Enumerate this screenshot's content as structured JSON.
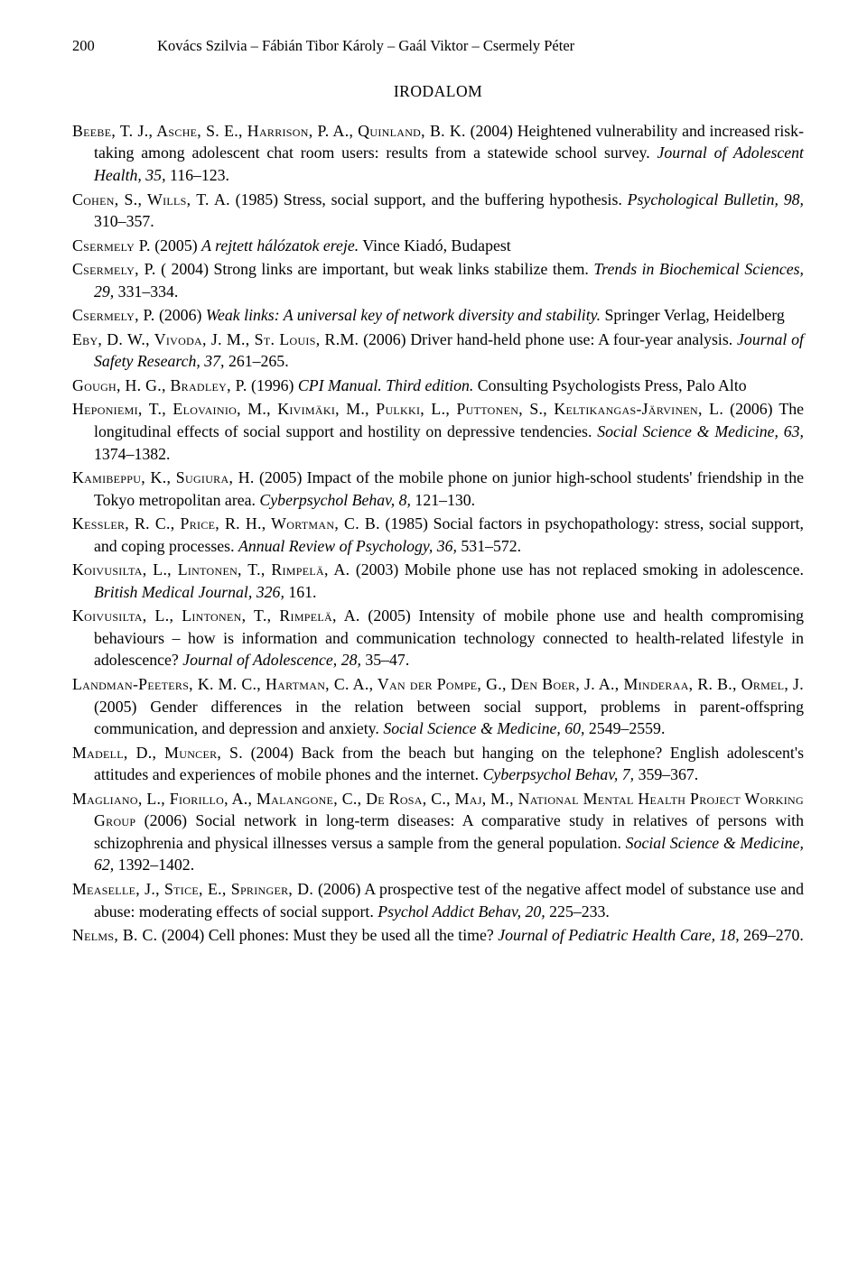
{
  "header": {
    "page_number": "200",
    "running_head": "Kovács Szilvia – Fábián Tibor Károly – Gaál Viktor – Csermely Péter"
  },
  "section_title": "IRODALOM",
  "refs": {
    "r1": {
      "authors": "Beebe, T. J., Asche, S. E., Harrison, P. A., Quinland, B. K.",
      "rest_a": " (2004) Heightened vulnerability and increased risk-taking among adolescent chat room users: results from a statewide school survey. ",
      "journal": "Journal of Adolescent Health, 35,",
      "rest_b": " 116–123."
    },
    "r2": {
      "authors": "Cohen, S., Wills, T. A.",
      "rest_a": " (1985) Stress, social support, and the buffering hypothesis. ",
      "journal": "Psychological Bulletin, 98,",
      "rest_b": " 310–357."
    },
    "r3": {
      "authors": "Csermely P.",
      "rest_a": " (2005) ",
      "title_it": "A rejtett hálózatok ereje.",
      "rest_b": " Vince Kiadó, Budapest"
    },
    "r4": {
      "authors": "Csermely, P.",
      "rest_a": " ( 2004) Strong links are important, but weak links stabilize them. ",
      "journal": "Trends in Biochemical Sciences, 29,",
      "rest_b": " 331–334."
    },
    "r5": {
      "authors": "Csermely, P.",
      "rest_a": " (2006) ",
      "title_it": "Weak links: A universal key of network diversity and stability.",
      "rest_b": " Springer Verlag, Heidelberg"
    },
    "r6": {
      "authors": "Eby, D. W., Vivoda, J. M., St. Louis, R.M.",
      "rest_a": " (2006) Driver hand-held phone use: A four-year analysis. ",
      "journal": "Journal of Safety Research, 37,",
      "rest_b": " 261–265."
    },
    "r7": {
      "authors": "Gough, H. G., Bradley, P.",
      "rest_a": " (1996) ",
      "title_it": "CPI Manual. Third edition.",
      "rest_b": " Consulting Psychologists Press, Palo Alto"
    },
    "r8": {
      "authors": "Heponiemi, T., Elovainio, M., Kivimäki, M., Pulkki, L., Puttonen, S., Keltikangas-Järvinen, L.",
      "rest_a": " (2006) The longitudinal effects of social support and hostility on depressive tendencies. ",
      "journal": "Social Science & Medicine, 63,",
      "rest_b": " 1374–1382."
    },
    "r9": {
      "authors": "Kamibeppu, K., Sugiura, H.",
      "rest_a": " (2005) Impact of the mobile phone on junior high-school students' friendship in the Tokyo metropolitan area. ",
      "journal": "Cyberpsychol Behav, 8,",
      "rest_b": " 121–130."
    },
    "r10": {
      "authors": "Kessler, R. C., Price, R. H., Wortman, C. B.",
      "rest_a": " (1985) Social factors in psychopathology: stress, social support, and coping processes. ",
      "journal": "Annual Review of Psychology, 36,",
      "rest_b": " 531–572."
    },
    "r11": {
      "authors": "Koivusilta, L., Lintonen, T., Rimpelä, A.",
      "rest_a": " (2003) Mobile phone use has not replaced smoking in adolescence. ",
      "journal": "British Medical Journal, 326,",
      "rest_b": " 161."
    },
    "r12": {
      "authors": "Koivusilta, L., Lintonen, T., Rimpelä, A.",
      "rest_a": " (2005) Intensity of mobile phone use and health compromising behaviours – how is information and communication technology connected to health-related lifestyle in adolescence? ",
      "journal": "Journal of Adolescence, 28,",
      "rest_b": " 35–47."
    },
    "r13": {
      "authors": "Landman-Peeters, K. M. C., Hartman, C. A., Van der Pompe, G., Den Boer, J. A., Minderaa, R. B., Ormel, J.",
      "rest_a": " (2005) Gender differences in the relation between social support, problems in parent-offspring communication, and depression and anxiety. ",
      "journal": "Social Science & Medicine, 60,",
      "rest_b": " 2549–2559."
    },
    "r14": {
      "authors": "Madell, D., Muncer, S.",
      "rest_a": " (2004) Back from the beach but hanging on the telephone? English adolescent's attitudes and experiences of mobile phones and the internet. ",
      "journal": "Cyberpsychol Behav, 7,",
      "rest_b": " 359–367."
    },
    "r15": {
      "authors": "Magliano, L., Fiorillo, A., Malangone, C., De Rosa, C., Maj, M., National Mental Health Project Working Group",
      "rest_a": " (2006) Social network in long-term diseases: A comparative study in relatives of persons with schizophrenia and physical illnesses versus a sample from the general population. ",
      "journal": "Social Science & Medicine, 62,",
      "rest_b": " 1392–1402."
    },
    "r16": {
      "authors": "Measelle, J., Stice, E., Springer, D.",
      "rest_a": " (2006) A prospective test of the negative affect model of substance use and abuse: moderating effects of social support. ",
      "journal": "Psychol Addict Behav, 20,",
      "rest_b": " 225–233."
    },
    "r17": {
      "authors": "Nelms, B. C.",
      "rest_a": " (2004) Cell phones: Must they be used all the time? ",
      "journal": "Journal of Pediatric Health Care, 18,",
      "rest_b": " 269–270."
    }
  }
}
